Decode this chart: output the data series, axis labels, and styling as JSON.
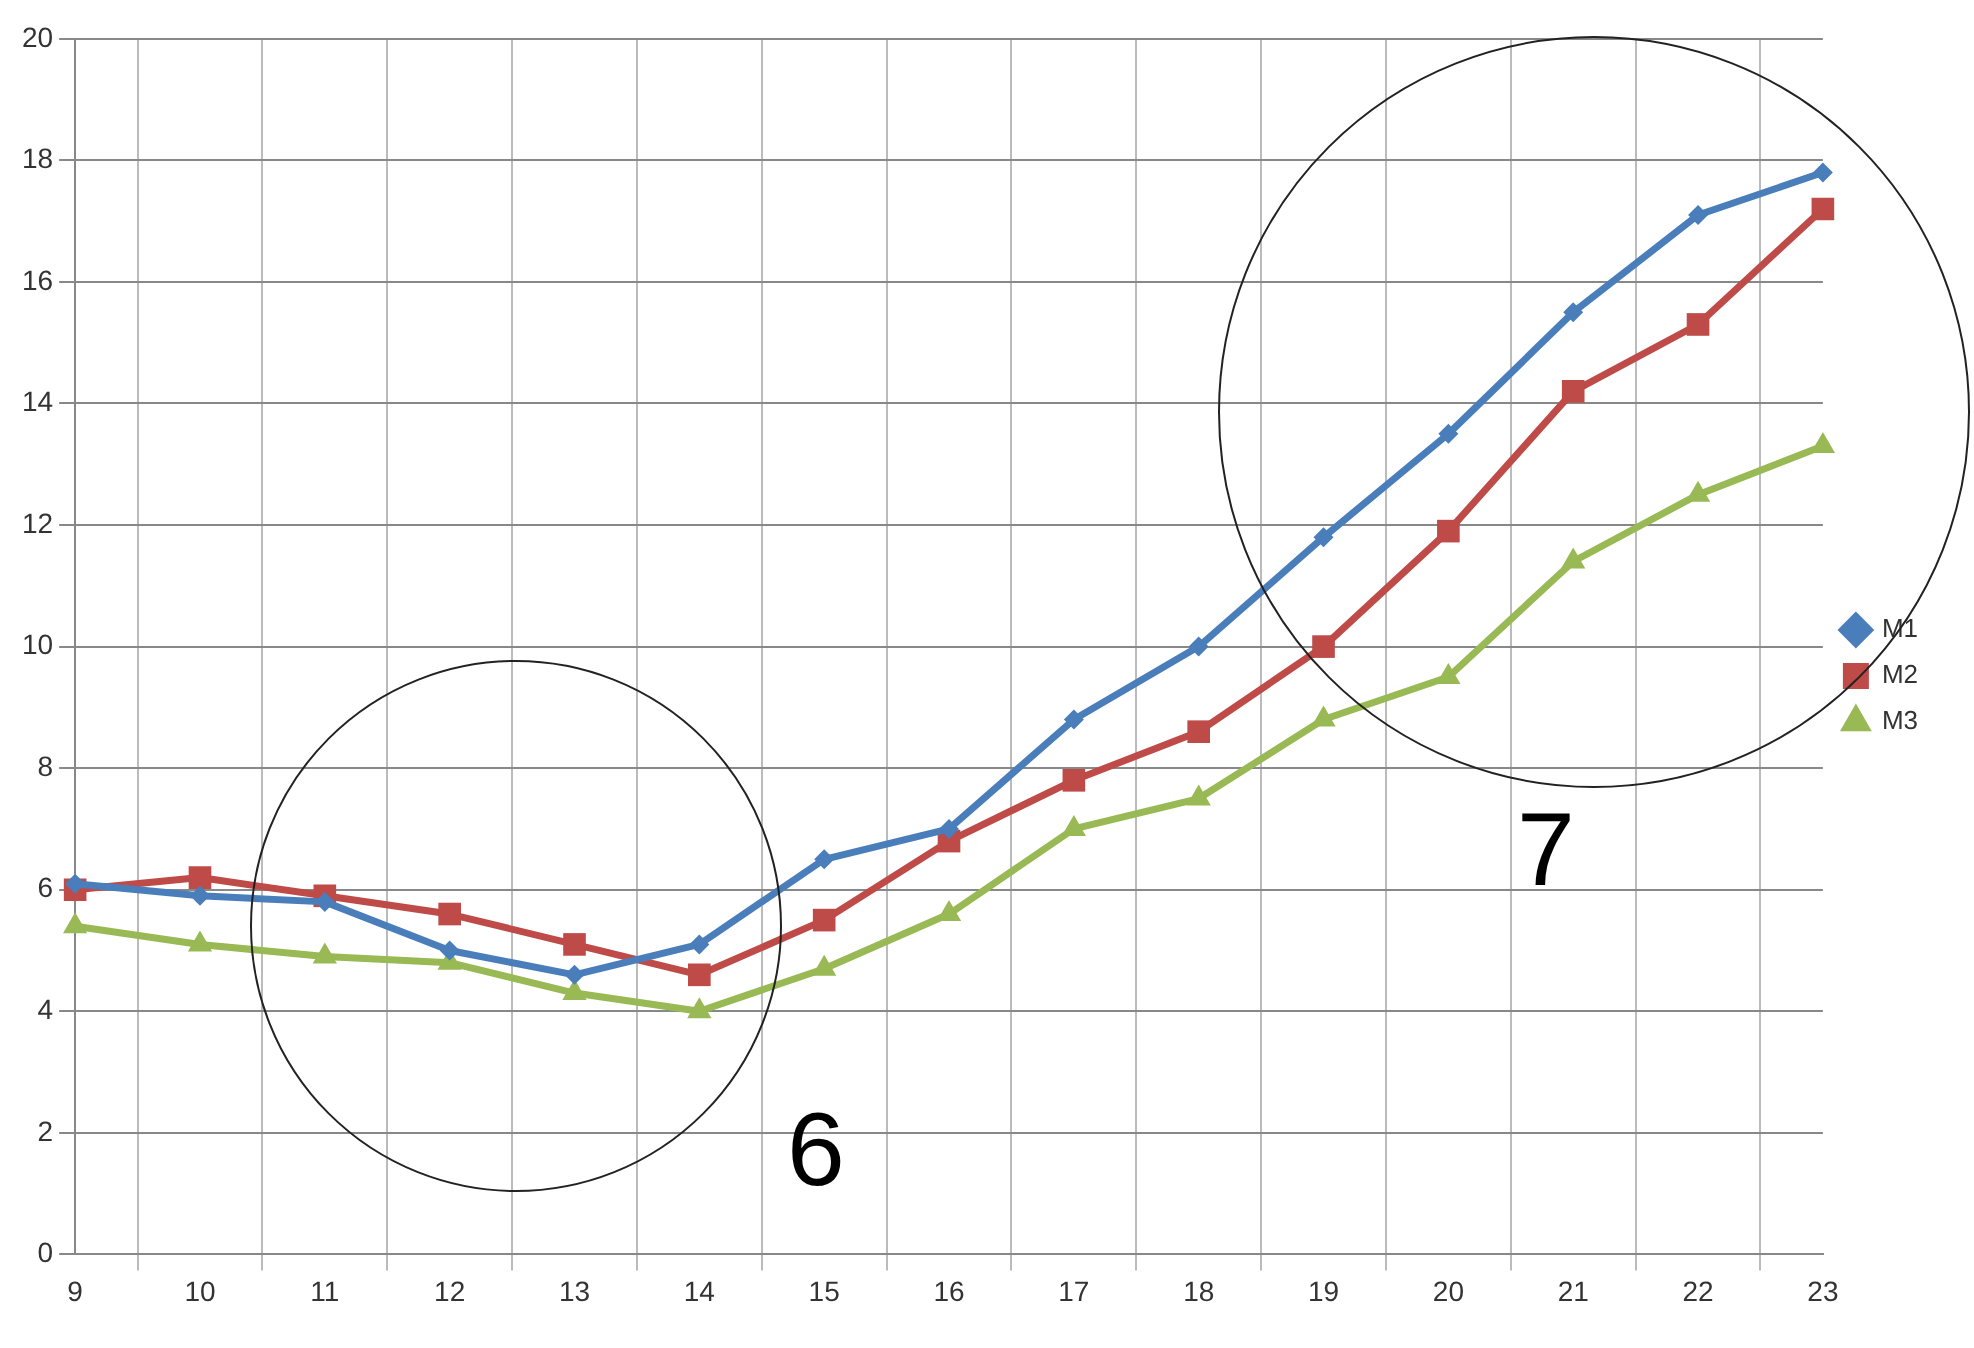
{
  "chart_data": {
    "type": "line",
    "categories": [
      "9",
      "10",
      "11",
      "12",
      "13",
      "14",
      "15",
      "16",
      "17",
      "18",
      "19",
      "20",
      "21",
      "22",
      "23"
    ],
    "series": [
      {
        "name": "M1",
        "color": "#4a7ebb",
        "marker": "diamond",
        "values": [
          6.1,
          5.9,
          5.8,
          5.0,
          4.6,
          5.1,
          6.5,
          7.0,
          8.8,
          10.0,
          11.8,
          13.5,
          15.5,
          17.1,
          17.8
        ]
      },
      {
        "name": "M2",
        "color": "#be4b48",
        "marker": "square",
        "values": [
          6.0,
          6.2,
          5.9,
          5.6,
          5.1,
          4.6,
          5.5,
          6.8,
          7.8,
          8.6,
          10.0,
          11.9,
          14.2,
          15.3,
          17.2
        ]
      },
      {
        "name": "M3",
        "color": "#98b954",
        "marker": "triangle",
        "values": [
          5.4,
          5.1,
          4.9,
          4.8,
          4.3,
          4.0,
          4.7,
          5.6,
          7.0,
          7.5,
          8.8,
          9.5,
          11.4,
          12.5,
          13.3
        ]
      }
    ],
    "ylim": [
      0,
      20
    ],
    "yticks": [
      0,
      2,
      4,
      6,
      8,
      10,
      12,
      14,
      16,
      18,
      20
    ],
    "grid": true,
    "legend": "right",
    "annotations": [
      "6",
      "7"
    ]
  }
}
